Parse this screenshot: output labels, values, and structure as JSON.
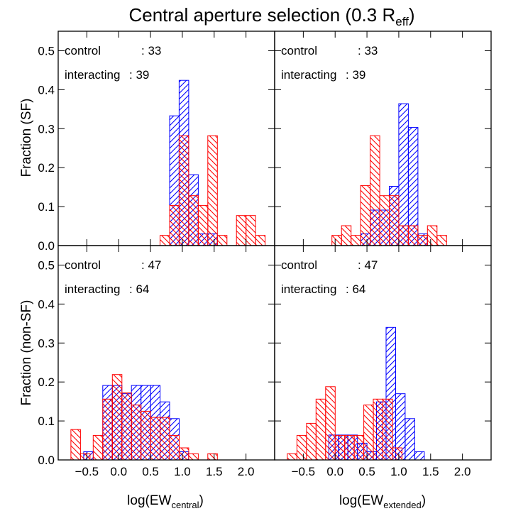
{
  "figure": {
    "title": "Central aperture selection (0.3 R",
    "title_sub": "eff",
    "title_close": ")",
    "ylabel_top": "Fraction (SF)",
    "ylabel_bottom": "Fraction (non-SF)",
    "xlabel_left_prefix": "log(EW",
    "xlabel_left_sub": "central",
    "xlabel_right_prefix": "log(EW",
    "xlabel_right_sub": "extended",
    "xlabel_suffix": ")"
  },
  "colors": {
    "control": "#0000ff",
    "interacting": "#ff0000",
    "axis": "#000000"
  },
  "chart_data": [
    {
      "type": "bar",
      "panel": "top-left",
      "xlim": [
        -0.95,
        2.45
      ],
      "ylim": [
        0,
        0.55
      ],
      "xticks": [
        -0.5,
        0.0,
        0.5,
        1.0,
        1.5,
        2.0
      ],
      "yticks": [
        0.0,
        0.1,
        0.2,
        0.3,
        0.4,
        0.5
      ],
      "xticklabels": [],
      "yticklabels": [
        "0.0",
        "0.1",
        "0.2",
        "0.3",
        "0.4",
        "0.5"
      ],
      "annotations": [
        {
          "label": "control",
          "count": ": 33"
        },
        {
          "label": "interacting",
          "count": ": 39"
        }
      ],
      "series": [
        {
          "bins": [
            [
              0.8,
              0.95,
              0.333
            ],
            [
              0.95,
              1.1,
              0.424
            ],
            [
              1.1,
              1.25,
              0.182
            ],
            [
              1.25,
              1.4,
              0.03
            ],
            [
              1.4,
              1.55,
              0.03
            ]
          ]
        },
        {
          "bins": [
            [
              0.65,
              0.8,
              0.026
            ],
            [
              0.8,
              0.95,
              0.103
            ],
            [
              0.95,
              1.1,
              0.282
            ],
            [
              1.1,
              1.25,
              0.128
            ],
            [
              1.25,
              1.4,
              0.103
            ],
            [
              1.4,
              1.55,
              0.282
            ],
            [
              1.55,
              1.7,
              0.026
            ],
            [
              1.85,
              2.0,
              0.077
            ],
            [
              2.0,
              2.15,
              0.077
            ],
            [
              2.15,
              2.3,
              0.026
            ]
          ]
        }
      ]
    },
    {
      "type": "bar",
      "panel": "top-right",
      "xlim": [
        -0.95,
        2.45
      ],
      "ylim": [
        0,
        0.55
      ],
      "xticks": [
        -0.5,
        0.0,
        0.5,
        1.0,
        1.5,
        2.0
      ],
      "yticks": [
        0.0,
        0.1,
        0.2,
        0.3,
        0.4,
        0.5
      ],
      "xticklabels": [],
      "yticklabels": [],
      "annotations": [
        {
          "label": "control",
          "count": ": 33"
        },
        {
          "label": "interacting",
          "count": ": 39"
        }
      ],
      "series": [
        {
          "bins": [
            [
              0.4,
              0.55,
              0.03
            ],
            [
              0.55,
              0.7,
              0.091
            ],
            [
              0.7,
              0.85,
              0.091
            ],
            [
              0.85,
              1.0,
              0.152
            ],
            [
              1.0,
              1.15,
              0.364
            ],
            [
              1.15,
              1.3,
              0.303
            ],
            [
              1.3,
              1.45,
              0.03
            ]
          ]
        },
        {
          "bins": [
            [
              -0.05,
              0.1,
              0.026
            ],
            [
              0.1,
              0.25,
              0.051
            ],
            [
              0.25,
              0.4,
              0.026
            ],
            [
              0.4,
              0.55,
              0.154
            ],
            [
              0.55,
              0.7,
              0.282
            ],
            [
              0.7,
              0.85,
              0.128
            ],
            [
              0.85,
              1.0,
              0.128
            ],
            [
              1.0,
              1.15,
              0.051
            ],
            [
              1.15,
              1.3,
              0.051
            ],
            [
              1.3,
              1.45,
              0.026
            ],
            [
              1.45,
              1.6,
              0.051
            ],
            [
              1.6,
              1.75,
              0.026
            ]
          ]
        }
      ]
    },
    {
      "type": "bar",
      "panel": "bottom-left",
      "xlim": [
        -0.95,
        2.45
      ],
      "ylim": [
        0,
        0.55
      ],
      "xticks": [
        -0.5,
        0.0,
        0.5,
        1.0,
        1.5,
        2.0
      ],
      "yticks": [
        0.0,
        0.1,
        0.2,
        0.3,
        0.4,
        0.5
      ],
      "xticklabels": [
        "−0.5",
        "0.0",
        "0.5",
        "1.0",
        "1.5",
        "2.0"
      ],
      "yticklabels": [
        "0.0",
        "0.1",
        "0.2",
        "0.3",
        "0.4",
        "0.5"
      ],
      "annotations": [
        {
          "label": "control",
          "count": ": 47"
        },
        {
          "label": "interacting",
          "count": ": 64"
        }
      ],
      "series": [
        {
          "bins": [
            [
              -0.55,
              -0.4,
              0.021
            ],
            [
              -0.25,
              -0.1,
              0.191
            ],
            [
              -0.1,
              0.05,
              0.191
            ],
            [
              0.05,
              0.2,
              0.17
            ],
            [
              0.2,
              0.35,
              0.191
            ],
            [
              0.35,
              0.5,
              0.191
            ],
            [
              0.5,
              0.65,
              0.191
            ],
            [
              0.65,
              0.8,
              0.149
            ],
            [
              0.8,
              0.95,
              0.106
            ],
            [
              0.95,
              1.1,
              0.021
            ]
          ]
        },
        {
          "bins": [
            [
              -0.75,
              -0.6,
              0.078
            ],
            [
              -0.6,
              -0.45,
              0.016
            ],
            [
              -0.4,
              -0.25,
              0.063
            ],
            [
              -0.25,
              -0.1,
              0.156
            ],
            [
              -0.1,
              0.05,
              0.219
            ],
            [
              0.05,
              0.2,
              0.172
            ],
            [
              0.2,
              0.35,
              0.141
            ],
            [
              0.35,
              0.5,
              0.125
            ],
            [
              0.5,
              0.65,
              0.109
            ],
            [
              0.65,
              0.8,
              0.109
            ],
            [
              0.8,
              0.95,
              0.063
            ],
            [
              0.95,
              1.1,
              0.031
            ],
            [
              1.1,
              1.25,
              0.016
            ],
            [
              1.4,
              1.55,
              0.016
            ]
          ]
        }
      ]
    },
    {
      "type": "bar",
      "panel": "bottom-right",
      "xlim": [
        -0.95,
        2.45
      ],
      "ylim": [
        0,
        0.55
      ],
      "xticks": [
        -0.5,
        0.0,
        0.5,
        1.0,
        1.5,
        2.0
      ],
      "yticks": [
        0.0,
        0.1,
        0.2,
        0.3,
        0.4,
        0.5
      ],
      "xticklabels": [
        "−0.5",
        "0.0",
        "0.5",
        "1.0",
        "1.5",
        "2.0"
      ],
      "yticklabels": [],
      "annotations": [
        {
          "label": "control",
          "count": ": 47"
        },
        {
          "label": "interacting",
          "count": ": 64"
        }
      ],
      "series": [
        {
          "bins": [
            [
              -0.1,
              0.05,
              0.064
            ],
            [
              0.05,
              0.2,
              0.064
            ],
            [
              0.2,
              0.35,
              0.064
            ],
            [
              0.35,
              0.5,
              0.043
            ],
            [
              0.5,
              0.65,
              0.021
            ],
            [
              0.65,
              0.8,
              0.149
            ],
            [
              0.8,
              0.95,
              0.34
            ],
            [
              0.95,
              1.1,
              0.17
            ],
            [
              1.1,
              1.25,
              0.106
            ],
            [
              1.25,
              1.4,
              0.021
            ]
          ]
        },
        {
          "bins": [
            [
              -0.75,
              -0.6,
              0.016
            ],
            [
              -0.6,
              -0.45,
              0.063
            ],
            [
              -0.45,
              -0.3,
              0.094
            ],
            [
              -0.3,
              -0.15,
              0.156
            ],
            [
              -0.15,
              0.0,
              0.188
            ],
            [
              0.0,
              0.15,
              0.063
            ],
            [
              0.15,
              0.3,
              0.063
            ],
            [
              0.3,
              0.45,
              0.063
            ],
            [
              0.45,
              0.6,
              0.141
            ],
            [
              0.6,
              0.75,
              0.156
            ],
            [
              0.75,
              0.9,
              0.156
            ],
            [
              0.9,
              1.05,
              0.031
            ]
          ]
        }
      ]
    }
  ]
}
